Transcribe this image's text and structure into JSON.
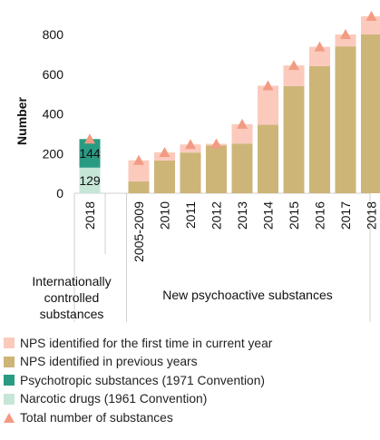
{
  "chart_data": {
    "type": "bar",
    "ylabel": "Number",
    "yticks": [
      0,
      200,
      400,
      600,
      800
    ],
    "ylim": [
      0,
      900
    ],
    "grid": false,
    "colors": {
      "nps_first": "#fbcabc",
      "nps_previous": "#cdb578",
      "psychotropic": "#2a9b82",
      "narcotic": "#c6e6d8",
      "total_marker": "#f29b83"
    },
    "groups": [
      {
        "name": "Internationally controlled substances",
        "lines": [
          "Internationally",
          "controlled",
          "substances"
        ],
        "categories": [
          "2018"
        ],
        "series": [
          {
            "name": "Narcotic drugs (1961 Convention)",
            "key": "narcotic",
            "values": [
              129
            ]
          },
          {
            "name": "Psychotropic substances (1971 Convention)",
            "key": "psychotropic",
            "values": [
              144
            ]
          }
        ],
        "segment_labels": [
          [
            "129",
            "144"
          ]
        ],
        "totals": [
          273
        ]
      },
      {
        "name": "New psychoactive substances",
        "lines": [
          "New psychoactive substances"
        ],
        "categories": [
          "2005-2009",
          "2010",
          "2011",
          "2012",
          "2013",
          "2014",
          "2015",
          "2016",
          "2017",
          "2018"
        ],
        "series": [
          {
            "name": "NPS identified in previous years",
            "key": "nps_previous",
            "values": [
              60,
              165,
              205,
              240,
              250,
              345,
              540,
              640,
              740,
              800
            ]
          },
          {
            "name": "NPS identified for the first time in current year",
            "key": "nps_first",
            "values": [
              106,
              41,
              41,
              9,
              98,
              197,
              104,
              98,
              60,
              92
            ]
          }
        ],
        "totals": [
          166,
          206,
          246,
          249,
          348,
          542,
          644,
          738,
          800,
          892
        ]
      }
    ],
    "legend": [
      {
        "label": "NPS identified for the first time in current year",
        "key": "nps_first",
        "shape": "square"
      },
      {
        "label": "NPS identified in previous years",
        "key": "nps_previous",
        "shape": "square"
      },
      {
        "label": "Psychotropic substances (1971 Convention)",
        "key": "psychotropic",
        "shape": "square"
      },
      {
        "label": "Narcotic drugs (1961 Convention)",
        "key": "narcotic",
        "shape": "square"
      },
      {
        "label": "Total number of substances",
        "key": "total_marker",
        "shape": "triangle"
      }
    ],
    "legend_position": "bottom"
  }
}
